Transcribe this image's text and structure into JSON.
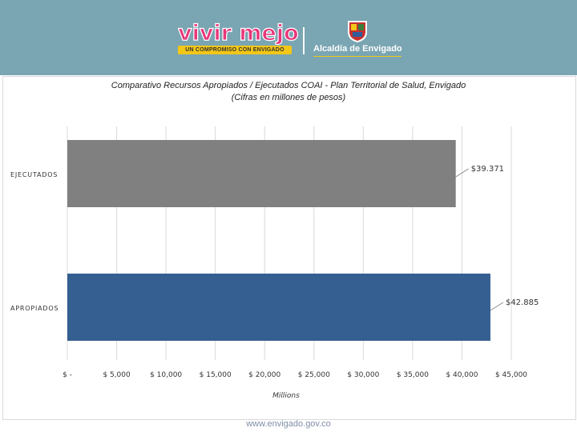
{
  "header": {
    "brand_main": "vivir mejor",
    "brand_tagline": "UN COMPROMISO CON ENVIGADO",
    "institution": "Alcaldía de Envigado"
  },
  "chart_data": {
    "type": "bar",
    "orientation": "horizontal",
    "title": "Comparativo Recursos Apropiados / Ejecutados COAI - Plan Territorial de Salud, Envigado",
    "subtitle": "(Cifras en millones de pesos)",
    "categories": [
      "EJECUTADOS",
      "APROPIADOS"
    ],
    "values": [
      39371,
      42885
    ],
    "data_labels": [
      "$39.371",
      "$42.885"
    ],
    "bar_colors": [
      "#808080",
      "#365f91"
    ],
    "xlim": [
      0,
      45000
    ],
    "xticks": [
      0,
      5000,
      10000,
      15000,
      20000,
      25000,
      30000,
      35000,
      40000,
      45000
    ],
    "xtick_labels": [
      "$ -",
      "$ 5,000",
      "$ 10,000",
      "$ 15,000",
      "$ 20,000",
      "$ 25,000",
      "$ 30,000",
      "$ 35,000",
      "$ 40,000",
      "$ 45,000"
    ],
    "xlabel": "Millions",
    "grid": true,
    "legend": "none"
  },
  "footer": {
    "url": "www.envigado.gov.co"
  }
}
